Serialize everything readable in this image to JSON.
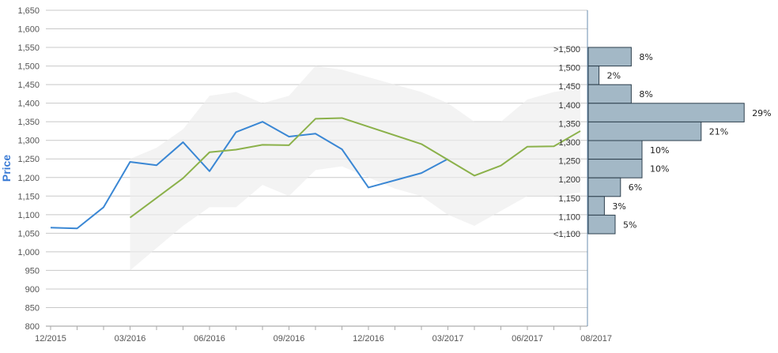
{
  "chart_data": {
    "type": "line",
    "ylabel": "Price",
    "ylim": [
      800,
      1650
    ],
    "y_ticks": [
      "1,650",
      "1,600",
      "1,550",
      "1,500",
      "1,450",
      "1,400",
      "1,350",
      "1,300",
      "1,250",
      "1,200",
      "1,150",
      "1,100",
      "1,050",
      "1,000",
      "950",
      "900",
      "850",
      "800"
    ],
    "x_ticks": [
      "12/2015",
      "03/2016",
      "06/2016",
      "09/2016",
      "12/2016",
      "03/2017",
      "06/2017",
      "08/2017"
    ],
    "range_band": {
      "x": [
        3,
        4,
        5,
        6,
        7,
        8,
        9,
        10,
        11,
        12,
        13,
        14,
        15,
        16,
        17,
        18,
        19,
        20
      ],
      "upper": [
        1250,
        1280,
        1330,
        1420,
        1430,
        1400,
        1420,
        1500,
        1490,
        1470,
        1450,
        1430,
        1400,
        1350,
        1350,
        1410,
        1430,
        1440
      ],
      "lower": [
        950,
        1010,
        1070,
        1120,
        1120,
        1180,
        1150,
        1220,
        1230,
        1200,
        1170,
        1150,
        1100,
        1070,
        1110,
        1150,
        1150,
        1160
      ]
    },
    "series": [
      {
        "color": "#3a87d4",
        "x": [
          0,
          1,
          2,
          3,
          4,
          5,
          6,
          7,
          8,
          9,
          10,
          11,
          12,
          14,
          15
        ],
        "values": [
          1065,
          1063,
          1120,
          1242,
          1233,
          1295,
          1217,
          1322,
          1350,
          1310,
          1318,
          1276,
          1173,
          1212,
          1250
        ]
      },
      {
        "color": "#8bb14a",
        "x": [
          3,
          5,
          6,
          7,
          8,
          9,
          10,
          11,
          14,
          16,
          17,
          18,
          19,
          20
        ],
        "values": [
          1092,
          1198,
          1268,
          1275,
          1288,
          1287,
          1358,
          1360,
          1290,
          1205,
          1232,
          1283,
          1284,
          1325
        ]
      }
    ],
    "histogram": {
      "bins": [
        {
          "label": ">1,500",
          "value": 8,
          "pct": "8%"
        },
        {
          "label": "1,500",
          "value": 2,
          "pct": "2%"
        },
        {
          "label": "1,450",
          "value": 8,
          "pct": "8%"
        },
        {
          "label": "1,400",
          "value": 29,
          "pct": "29%"
        },
        {
          "label": "1,350",
          "value": 21,
          "pct": "21%"
        },
        {
          "label": "1,300",
          "value": 10,
          "pct": "10%"
        },
        {
          "label": "1,250",
          "value": 10,
          "pct": "10%"
        },
        {
          "label": "1,200",
          "value": 6,
          "pct": "6%"
        },
        {
          "label": "1,150",
          "value": 3,
          "pct": "3%"
        },
        {
          "label": "<1,100",
          "value": 5,
          "pct": "5%"
        }
      ],
      "extra_label": "1,100",
      "bar_color": "#a3b8c6",
      "bar_stroke": "#2d3f4d"
    },
    "grid": true
  }
}
